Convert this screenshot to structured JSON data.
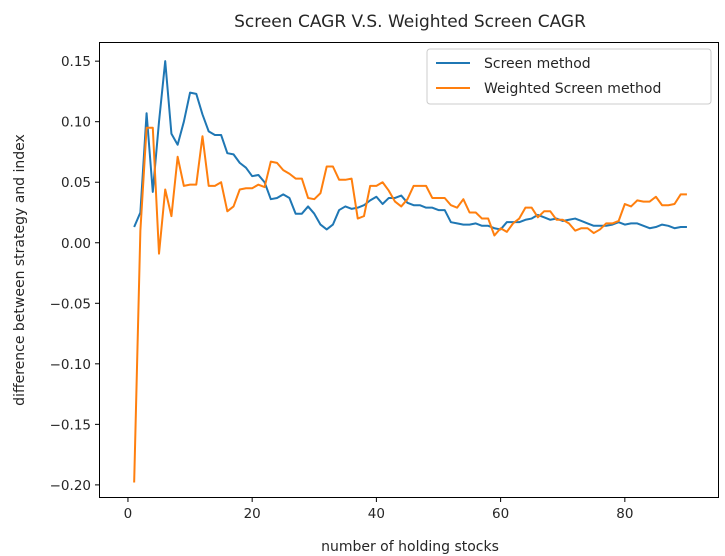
{
  "chart_data": {
    "type": "line",
    "title": "Screen CAGR V.S. Weighted Screen CAGR",
    "xlabel": "number of holding stocks",
    "ylabel": "difference between strategy and index",
    "xlim": [
      -4.5,
      95
    ],
    "ylim": [
      -0.21,
      0.165
    ],
    "x_ticks": [
      0,
      20,
      40,
      60,
      80
    ],
    "x_tick_labels": [
      "0",
      "20",
      "40",
      "60",
      "80"
    ],
    "y_ticks": [
      -0.2,
      -0.15,
      -0.1,
      -0.05,
      0.0,
      0.05,
      0.1,
      0.15
    ],
    "y_tick_labels": [
      "−0.20",
      "−0.15",
      "−0.10",
      "−0.05",
      "0.00",
      "0.05",
      "0.10",
      "0.15"
    ],
    "grid": false,
    "legend_position": "top-right",
    "x": [
      1,
      2,
      3,
      4,
      5,
      6,
      7,
      8,
      9,
      10,
      11,
      12,
      13,
      14,
      15,
      16,
      17,
      18,
      19,
      20,
      21,
      22,
      23,
      24,
      25,
      26,
      27,
      28,
      29,
      30,
      31,
      32,
      33,
      34,
      35,
      36,
      37,
      38,
      39,
      40,
      41,
      42,
      43,
      44,
      45,
      46,
      47,
      48,
      49,
      50,
      51,
      52,
      53,
      54,
      55,
      56,
      57,
      58,
      59,
      60,
      61,
      62,
      63,
      64,
      65,
      66,
      67,
      68,
      69,
      70,
      71,
      72,
      73,
      74,
      75,
      76,
      77,
      78,
      79,
      80,
      81,
      82,
      83,
      84,
      85,
      86,
      87,
      88,
      89,
      90
    ],
    "series": [
      {
        "name": "Screen method",
        "color": "#1f77b4",
        "values": [
          0.013,
          0.025,
          0.107,
          0.042,
          0.1,
          0.15,
          0.09,
          0.081,
          0.1,
          0.124,
          0.123,
          0.106,
          0.092,
          0.089,
          0.089,
          0.074,
          0.073,
          0.066,
          0.062,
          0.055,
          0.056,
          0.05,
          0.036,
          0.037,
          0.04,
          0.037,
          0.024,
          0.024,
          0.03,
          0.024,
          0.015,
          0.011,
          0.015,
          0.027,
          0.03,
          0.028,
          0.029,
          0.031,
          0.035,
          0.038,
          0.032,
          0.037,
          0.037,
          0.039,
          0.033,
          0.031,
          0.031,
          0.029,
          0.029,
          0.027,
          0.027,
          0.017,
          0.016,
          0.015,
          0.015,
          0.016,
          0.014,
          0.014,
          0.012,
          0.011,
          0.017,
          0.017,
          0.017,
          0.019,
          0.02,
          0.023,
          0.021,
          0.019,
          0.02,
          0.018,
          0.019,
          0.02,
          0.018,
          0.016,
          0.014,
          0.014,
          0.014,
          0.015,
          0.017,
          0.015,
          0.016,
          0.016,
          0.014,
          0.012,
          0.013,
          0.015,
          0.014,
          0.012,
          0.013,
          0.013
        ]
      },
      {
        "name": "Weighted Screen method",
        "color": "#ff7f0e",
        "values": [
          -0.198,
          0.01,
          0.095,
          0.095,
          -0.009,
          0.044,
          0.022,
          0.071,
          0.047,
          0.048,
          0.048,
          0.088,
          0.047,
          0.047,
          0.05,
          0.026,
          0.03,
          0.044,
          0.045,
          0.045,
          0.048,
          0.046,
          0.067,
          0.066,
          0.06,
          0.057,
          0.053,
          0.053,
          0.037,
          0.036,
          0.041,
          0.063,
          0.063,
          0.052,
          0.052,
          0.053,
          0.02,
          0.022,
          0.047,
          0.047,
          0.05,
          0.043,
          0.034,
          0.03,
          0.036,
          0.047,
          0.047,
          0.047,
          0.037,
          0.037,
          0.037,
          0.031,
          0.029,
          0.036,
          0.025,
          0.025,
          0.02,
          0.02,
          0.006,
          0.012,
          0.009,
          0.016,
          0.02,
          0.029,
          0.029,
          0.021,
          0.026,
          0.026,
          0.019,
          0.019,
          0.016,
          0.01,
          0.012,
          0.012,
          0.008,
          0.011,
          0.016,
          0.016,
          0.018,
          0.032,
          0.03,
          0.035,
          0.034,
          0.034,
          0.038,
          0.031,
          0.031,
          0.032,
          0.04,
          0.04
        ]
      }
    ]
  }
}
